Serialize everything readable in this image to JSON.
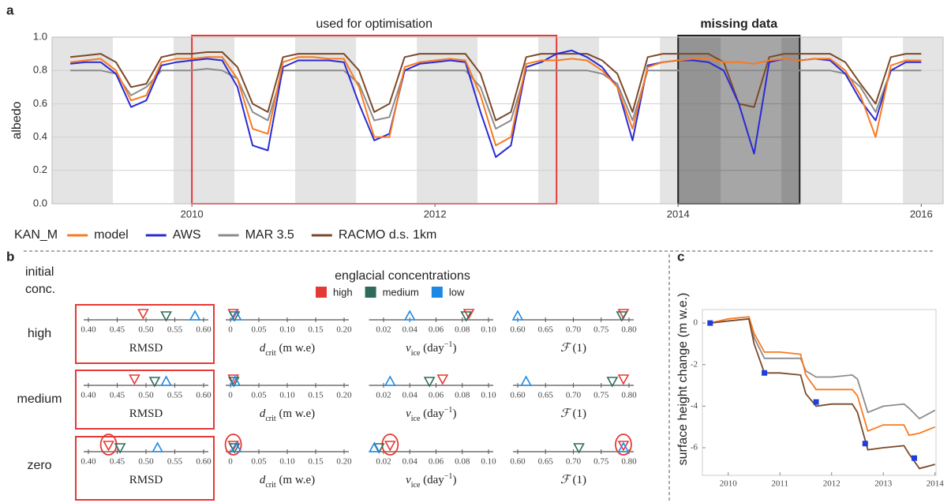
{
  "chart_data": [
    {
      "type": "line",
      "label": "a",
      "ylabel": "albedo",
      "legend_title": "KAN_M",
      "x": [
        2009,
        2009.125,
        2009.25,
        2009.375,
        2009.5,
        2009.625,
        2009.75,
        2009.875,
        2010,
        2010.125,
        2010.25,
        2010.375,
        2010.5,
        2010.625,
        2010.75,
        2010.875,
        2011,
        2011.125,
        2011.25,
        2011.375,
        2011.5,
        2011.625,
        2011.75,
        2011.875,
        2012,
        2012.125,
        2012.25,
        2012.375,
        2012.5,
        2012.625,
        2012.75,
        2012.875,
        2013,
        2013.125,
        2013.25,
        2013.375,
        2013.5,
        2013.625,
        2013.75,
        2013.875,
        2014,
        2014.125,
        2014.25,
        2014.375,
        2014.5,
        2014.625,
        2014.75,
        2014.875,
        2015,
        2015.125,
        2015.25,
        2015.375,
        2015.5,
        2015.625,
        2015.75,
        2015.875,
        2016
      ],
      "series": [
        {
          "name": "model",
          "color": "#f97a1f",
          "values": [
            0.85,
            0.86,
            0.87,
            0.8,
            0.62,
            0.65,
            0.85,
            0.87,
            0.87,
            0.88,
            0.88,
            0.75,
            0.45,
            0.42,
            0.85,
            0.88,
            0.88,
            0.87,
            0.87,
            0.7,
            0.4,
            0.4,
            0.82,
            0.85,
            0.86,
            0.87,
            0.86,
            0.65,
            0.35,
            0.4,
            0.84,
            0.86,
            0.86,
            0.87,
            0.86,
            0.8,
            0.7,
            0.45,
            0.82,
            0.85,
            0.86,
            0.87,
            0.87,
            0.85,
            0.85,
            0.84,
            0.86,
            0.87,
            0.86,
            0.87,
            0.87,
            0.8,
            0.65,
            0.4,
            0.83,
            0.86,
            0.86
          ]
        },
        {
          "name": "AWS",
          "color": "#2a2ad6",
          "values": [
            0.84,
            0.85,
            0.85,
            0.78,
            0.58,
            0.62,
            0.83,
            0.85,
            0.86,
            0.87,
            0.86,
            0.7,
            0.35,
            0.32,
            0.82,
            0.86,
            0.86,
            0.86,
            0.85,
            0.6,
            0.38,
            0.42,
            0.8,
            0.84,
            0.85,
            0.86,
            0.85,
            0.55,
            0.28,
            0.35,
            0.82,
            0.85,
            0.9,
            0.92,
            0.88,
            0.82,
            0.7,
            0.38,
            0.83,
            0.85,
            0.86,
            0.86,
            0.85,
            0.8,
            0.6,
            0.3,
            0.85,
            0.87,
            0.86,
            0.87,
            0.86,
            0.78,
            0.62,
            0.5,
            0.8,
            0.85,
            0.85
          ]
        },
        {
          "name": "MAR 3.5",
          "color": "#8c8c8c",
          "values": [
            0.8,
            0.8,
            0.8,
            0.78,
            0.65,
            0.7,
            0.8,
            0.8,
            0.8,
            0.81,
            0.8,
            0.75,
            0.55,
            0.5,
            0.8,
            0.8,
            0.8,
            0.8,
            0.8,
            0.72,
            0.5,
            0.52,
            0.8,
            0.8,
            0.8,
            0.8,
            0.8,
            0.7,
            0.45,
            0.5,
            0.8,
            0.8,
            0.8,
            0.8,
            0.8,
            0.78,
            0.72,
            0.5,
            0.8,
            0.8,
            0.8,
            0.8,
            0.8,
            0.8,
            0.8,
            0.8,
            0.8,
            0.8,
            0.8,
            0.8,
            0.8,
            0.78,
            0.7,
            0.55,
            0.8,
            0.8,
            0.8
          ]
        },
        {
          "name": "RACMO d.s. 1km",
          "color": "#7b4a2a",
          "values": [
            0.88,
            0.89,
            0.9,
            0.85,
            0.7,
            0.72,
            0.88,
            0.9,
            0.9,
            0.91,
            0.91,
            0.82,
            0.6,
            0.55,
            0.88,
            0.9,
            0.9,
            0.9,
            0.9,
            0.8,
            0.55,
            0.6,
            0.88,
            0.9,
            0.9,
            0.9,
            0.9,
            0.78,
            0.5,
            0.55,
            0.88,
            0.9,
            0.9,
            0.9,
            0.9,
            0.86,
            0.78,
            0.55,
            0.88,
            0.9,
            0.9,
            0.9,
            0.9,
            0.85,
            0.6,
            0.58,
            0.88,
            0.9,
            0.9,
            0.9,
            0.9,
            0.85,
            0.72,
            0.6,
            0.88,
            0.9,
            0.9
          ]
        }
      ],
      "draw_order": [
        2,
        3,
        1,
        0
      ],
      "xlim": [
        2008.85,
        2016.18
      ],
      "ylim": [
        0,
        1
      ],
      "xticks": [
        2010,
        2012,
        2014,
        2016
      ],
      "yticks": [
        {
          "value": 0,
          "label": "0.0"
        },
        {
          "value": 0.2,
          "label": "0.2"
        },
        {
          "value": 0.4,
          "label": "0.4"
        },
        {
          "value": 0.6,
          "label": "0.6"
        },
        {
          "value": 0.8,
          "label": "0.8"
        },
        {
          "value": 1,
          "label": "1.0"
        }
      ],
      "grid": true,
      "band_color": "#e4e4e4",
      "bands": [
        [
          2008.85,
          2009.35
        ],
        [
          2009.85,
          2010.35
        ],
        [
          2010.85,
          2011.35
        ],
        [
          2011.85,
          2012.35
        ],
        [
          2012.85,
          2013.35
        ],
        [
          2013.85,
          2014.35
        ],
        [
          2014.85,
          2015.35
        ],
        [
          2015.85,
          2016.18
        ]
      ],
      "boxes": [
        {
          "label": "used for optimisation",
          "x": [
            2010,
            2013
          ],
          "color": "#e53935",
          "fill": "none",
          "bold": false
        },
        {
          "label": "missing data",
          "x": [
            2014,
            2015
          ],
          "color": "#222222",
          "fill": "rgba(0,0,0,0.35)",
          "bold": true
        }
      ]
    },
    {
      "type": "strip",
      "label": "b",
      "row_header": [
        "initial",
        "conc."
      ],
      "legend_title": "englacial concentrations",
      "series": [
        {
          "name": "high",
          "color": "#e53935",
          "marker": "down"
        },
        {
          "name": "medium",
          "color": "#2e6b5a",
          "marker": "down"
        },
        {
          "name": "low",
          "color": "#1e88e5",
          "marker": "up"
        }
      ],
      "rows": [
        "high",
        "medium",
        "zero"
      ],
      "highlight": {
        "row": 2,
        "series": 0,
        "color": "#e53935"
      },
      "panels": [
        {
          "xlabel": [
            {
              "t": "RMSD"
            }
          ],
          "boxed": true,
          "box_color": "#e53935",
          "xlim": [
            0.4,
            0.6
          ],
          "xticks": [
            {
              "value": 0.4,
              "label": "0.40"
            },
            {
              "value": 0.45,
              "label": "0.45"
            },
            {
              "value": 0.5,
              "label": "0.50"
            },
            {
              "value": 0.55,
              "label": "0.55"
            },
            {
              "value": 0.6,
              "label": "0.60"
            }
          ],
          "values": [
            [
              0.495,
              0.535,
              0.585
            ],
            [
              0.48,
              0.515,
              0.535
            ],
            [
              0.435,
              0.455,
              0.52
            ]
          ]
        },
        {
          "xlabel": [
            {
              "t": "d",
              "italic": true
            },
            {
              "t": "crit",
              "shift": "sub"
            },
            {
              "t": " (m w.e)"
            }
          ],
          "boxed": false,
          "xlim": [
            0,
            0.2
          ],
          "xticks": [
            0,
            0.05,
            {
              "value": 0.1,
              "label": "0.10"
            },
            0.15,
            {
              "value": 0.2,
              "label": "0.20"
            }
          ],
          "values": [
            [
              0.005,
              0.007,
              0.01
            ],
            [
              0.005,
              0.006,
              0.008
            ],
            [
              0.005,
              0.007,
              0.01
            ]
          ]
        },
        {
          "xlabel": [
            {
              "t": "ν",
              "italic": true
            },
            {
              "t": "ice",
              "shift": "sub"
            },
            {
              "t": " (day"
            },
            {
              "t": "−1",
              "shift": "super"
            },
            {
              "t": ")"
            }
          ],
          "boxed": false,
          "xlim": [
            0.0125,
            0.1
          ],
          "xticks": [
            0.02,
            0.04,
            0.06,
            0.08,
            {
              "value": 0.1,
              "label": "0.10"
            }
          ],
          "values": [
            [
              0.085,
              0.083,
              0.04
            ],
            [
              0.065,
              0.055,
              0.025
            ],
            [
              0.025,
              0.0165,
              0.013
            ]
          ]
        },
        {
          "xlabel": [
            {
              "t": "ℱ",
              "italic": true
            },
            {
              "t": " (1)"
            }
          ],
          "boxed": false,
          "xlim": [
            0.6,
            0.8
          ],
          "xticks": [
            {
              "value": 0.6,
              "label": "0.60"
            },
            0.65,
            {
              "value": 0.7,
              "label": "0.70"
            },
            0.75,
            {
              "value": 0.8,
              "label": "0.80"
            }
          ],
          "values": [
            [
              0.79,
              0.787,
              0.6
            ],
            [
              0.79,
              0.77,
              0.615
            ],
            [
              0.79,
              0.71,
              0.79
            ]
          ]
        }
      ]
    },
    {
      "type": "line",
      "label": "c",
      "ylabel": "surface height change (m w.e.)",
      "x": [
        2009.65,
        2010,
        2010.4,
        2010.5,
        2010.7,
        2011,
        2011.4,
        2011.5,
        2011.7,
        2012,
        2012.4,
        2012.5,
        2012.7,
        2013,
        2013.4,
        2013.5,
        2013.7,
        2014
      ],
      "series": [
        {
          "color": "#8c8c8c",
          "values": [
            0,
            0.1,
            0.2,
            -0.7,
            -1.7,
            -1.7,
            -1.7,
            -2.3,
            -2.6,
            -2.6,
            -2.5,
            -2.7,
            -4.3,
            -4.0,
            -3.9,
            -4.1,
            -4.6,
            -4.2
          ]
        },
        {
          "color": "#f97a1f",
          "values": [
            0,
            0.2,
            0.3,
            -0.5,
            -1.4,
            -1.4,
            -1.5,
            -2.5,
            -3.2,
            -3.2,
            -3.2,
            -3.5,
            -5.2,
            -4.9,
            -4.9,
            -5.4,
            -5.3,
            -5.0
          ]
        },
        {
          "color": "#7b4a2a",
          "values": [
            0,
            0.1,
            0.2,
            -1.0,
            -2.4,
            -2.4,
            -2.5,
            -3.4,
            -4.0,
            -3.9,
            -3.9,
            -4.3,
            -6.1,
            -6.0,
            -5.9,
            -6.3,
            -7.0,
            -6.8
          ]
        },
        {
          "color": "#1f3fd8",
          "mode": "markers",
          "x": [
            2009.65,
            2010.7,
            2011.7,
            2012.65,
            2013.6
          ],
          "values": [
            0,
            -2.4,
            -3.8,
            -5.8,
            -6.5
          ]
        }
      ],
      "xlim": [
        2009.5,
        2014.02
      ],
      "ylim": [
        -7.33,
        0.65
      ],
      "xticks": [
        2010,
        2011,
        2012,
        2013,
        2014
      ],
      "yticks": [
        0,
        -2,
        -4,
        -6
      ]
    }
  ]
}
